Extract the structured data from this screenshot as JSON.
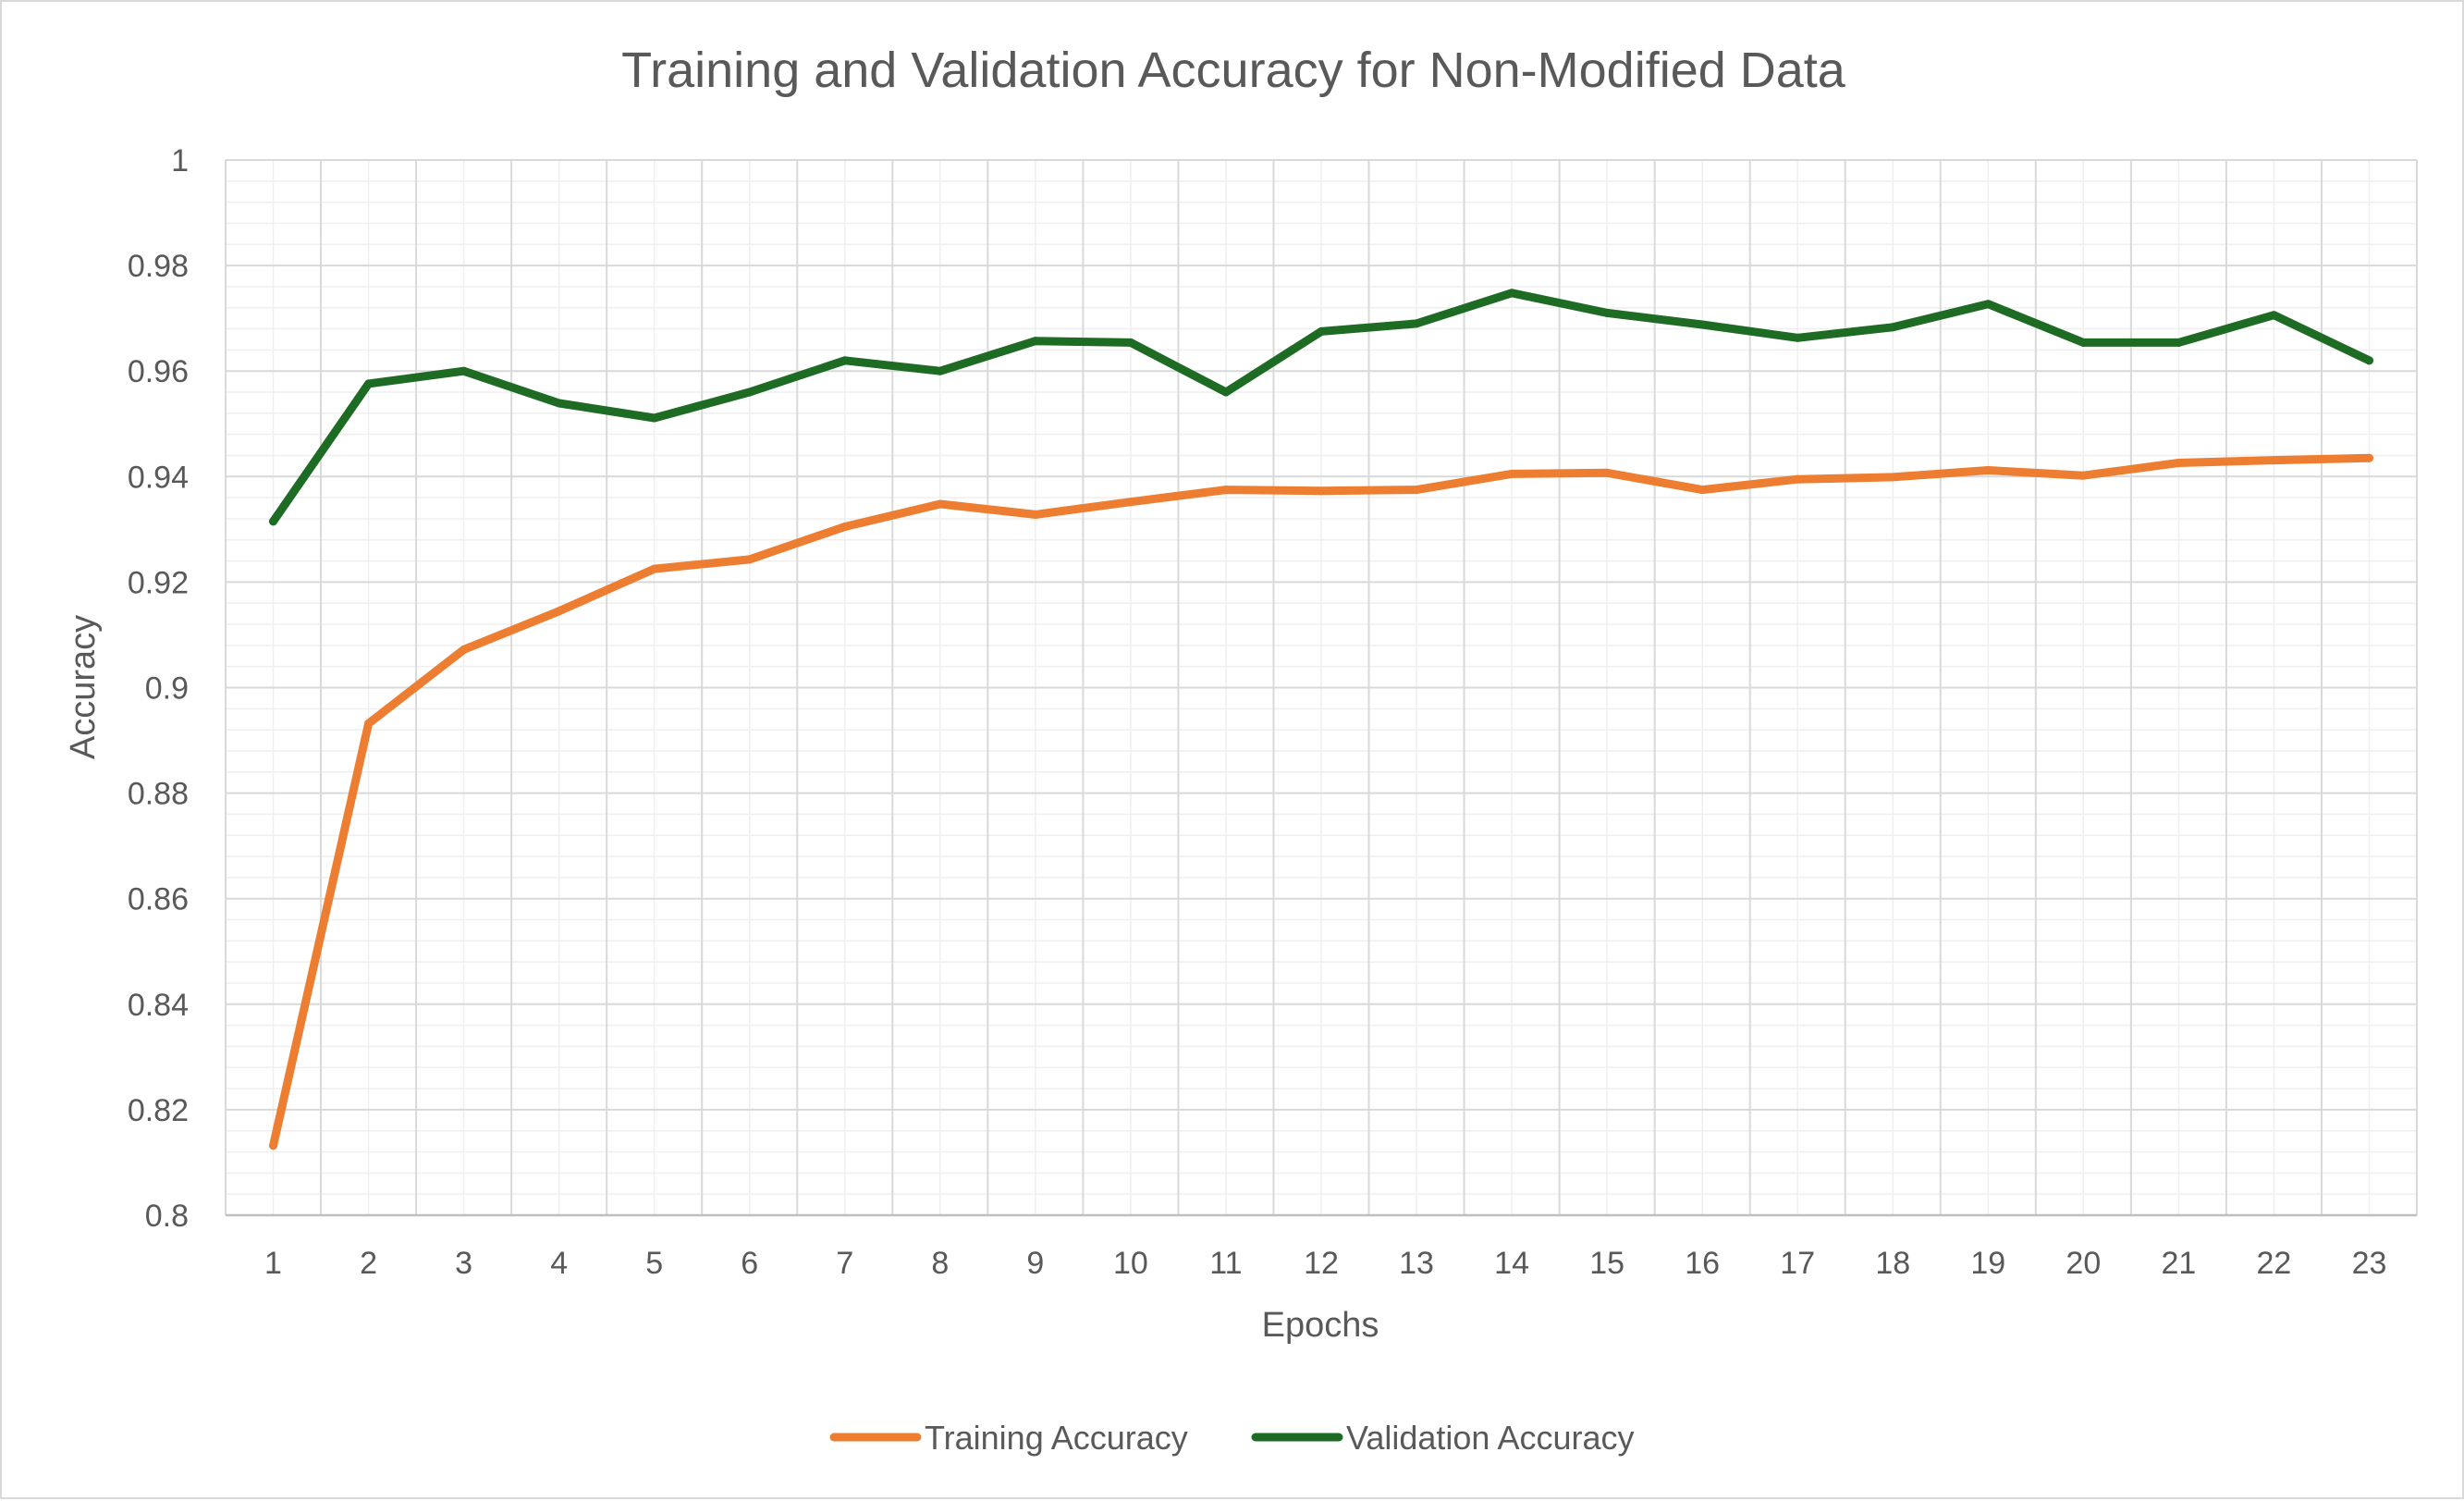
{
  "chart_data": {
    "type": "line",
    "title": "Training and Validation Accuracy for Non-Modified Data",
    "xlabel": "Epochs",
    "ylabel": "Accuracy",
    "categories": [
      "1",
      "2",
      "3",
      "4",
      "5",
      "6",
      "7",
      "8",
      "9",
      "10",
      "11",
      "12",
      "13",
      "14",
      "15",
      "16",
      "17",
      "18",
      "19",
      "20",
      "21",
      "22",
      "23"
    ],
    "ylim": [
      0.8,
      1
    ],
    "yticks": [
      "0.8",
      "0.82",
      "0.84",
      "0.86",
      "0.88",
      "0.9",
      "0.92",
      "0.94",
      "0.96",
      "0.98",
      "1"
    ],
    "grid": true,
    "legend_position": "bottom",
    "series": [
      {
        "name": "Training Accuracy",
        "color": "#ED7D31",
        "values": [
          0.8132,
          0.8932,
          0.9072,
          0.9145,
          0.9225,
          0.9243,
          0.9305,
          0.9348,
          0.9328,
          0.9352,
          0.9375,
          0.9373,
          0.9375,
          0.9405,
          0.9407,
          0.9375,
          0.9395,
          0.9399,
          0.9412,
          0.9402,
          0.9426,
          0.9431,
          0.9435
        ]
      },
      {
        "name": "Validation Accuracy",
        "color": "#1E6B24",
        "values": [
          0.9315,
          0.9576,
          0.96,
          0.9539,
          0.9511,
          0.956,
          0.962,
          0.96,
          0.9657,
          0.9654,
          0.956,
          0.9675,
          0.969,
          0.9748,
          0.971,
          0.9688,
          0.9663,
          0.9683,
          0.9727,
          0.9654,
          0.9654,
          0.9706,
          0.962
        ]
      }
    ]
  }
}
